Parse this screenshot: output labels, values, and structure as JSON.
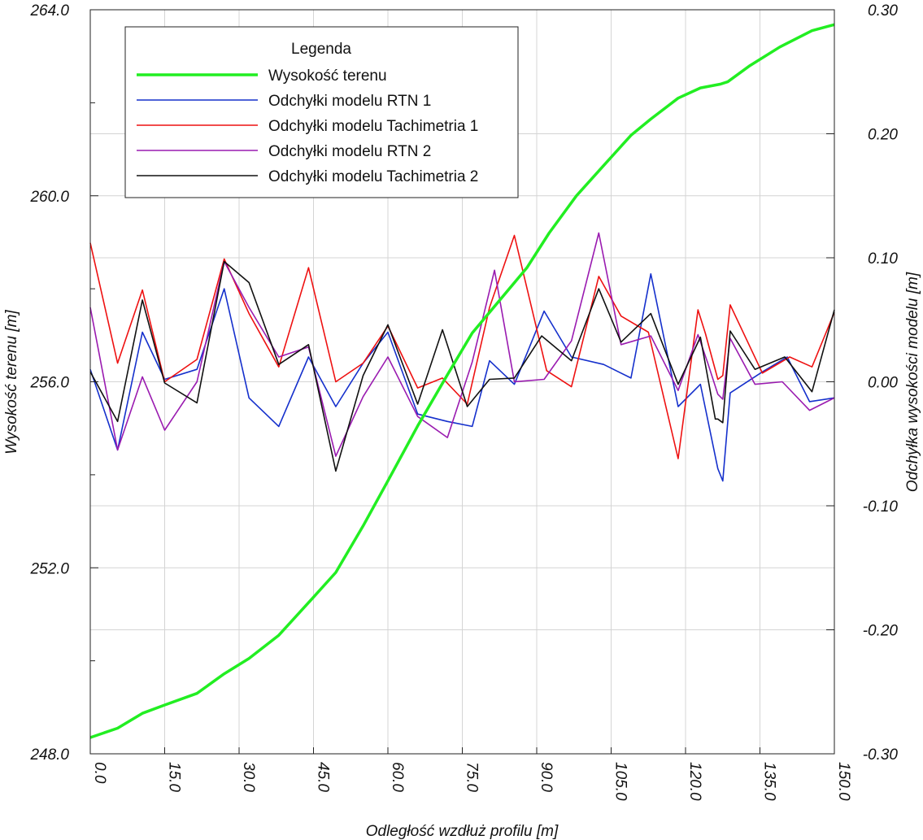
{
  "chart_data": {
    "type": "line",
    "xlabel": "Odległość wzdłuż profilu [m]",
    "ylabel_left": "Wysokość terenu  [m]",
    "ylabel_right": "Odchyłka wysokości modelu [m]",
    "xlim": [
      0,
      150
    ],
    "ylim_left": [
      248,
      264
    ],
    "ylim_right": [
      -0.3,
      0.3
    ],
    "x_ticks": [
      "0.0",
      "15.0",
      "30.0",
      "45.0",
      "60.0",
      "75.0",
      "90.0",
      "105.0",
      "120.0",
      "135.0",
      "150.0"
    ],
    "y_left_ticks": [
      "248.0",
      "252.0",
      "256.0",
      "260.0",
      "264.0"
    ],
    "y_right_ticks": [
      "-0.30",
      "-0.20",
      "-0.10",
      "0.00",
      "0.10",
      "0.20",
      "0.30"
    ],
    "grid": true,
    "legend_position": "top-left",
    "legend": {
      "title": "Legenda",
      "entries": [
        "Wysokość terenu",
        "Odchyłki modelu RTN 1",
        "Odchyłki modelu Tachimetria 1",
        "Odchyłki modelu RTN 2",
        "Odchyłki modelu Tachimetria 2"
      ]
    },
    "series": [
      {
        "name": "Wysokość terenu",
        "axis": "left",
        "color": "#22ee22",
        "x": [
          0,
          5.5,
          10.5,
          15,
          21.5,
          27,
          32,
          38,
          44,
          49.5,
          55,
          60,
          66,
          72,
          77,
          82.5,
          88,
          92.5,
          98,
          103.5,
          109,
          113,
          118.5,
          123,
          127,
          128.5,
          133,
          139,
          145.5,
          150
        ],
        "y": [
          248.35,
          248.55,
          248.87,
          249.05,
          249.3,
          249.72,
          250.05,
          250.55,
          251.25,
          251.9,
          252.9,
          253.87,
          255.05,
          256.15,
          257.05,
          257.75,
          258.45,
          259.2,
          260.0,
          260.65,
          261.3,
          261.65,
          262.1,
          262.32,
          262.4,
          262.45,
          262.8,
          263.2,
          263.55,
          263.68
        ]
      },
      {
        "name": "Odchyłki modelu RTN 1",
        "axis": "right",
        "color": "#1530cc",
        "x": [
          0,
          5.5,
          10.5,
          15,
          21.5,
          27,
          32,
          38,
          44,
          49.5,
          55,
          60,
          66,
          72,
          77,
          80.5,
          85.5,
          91.5,
          97,
          103.5,
          109,
          113,
          118.5,
          123,
          126.5,
          127.5,
          129,
          135.5,
          140.5,
          145,
          150
        ],
        "y": [
          0.01,
          -0.055,
          0.04,
          0.002,
          0.01,
          0.075,
          -0.013,
          -0.036,
          0.02,
          -0.02,
          0.015,
          0.04,
          -0.026,
          -0.032,
          -0.036,
          0.017,
          -0.002,
          0.057,
          0.02,
          0.014,
          0.003,
          0.087,
          -0.02,
          -0.002,
          -0.07,
          -0.08,
          -0.009,
          0.008,
          0.02,
          -0.016,
          -0.013
        ]
      },
      {
        "name": "Odchyłki modelu Tachimetria 1",
        "axis": "right",
        "color": "#ee1111",
        "x": [
          0,
          5.5,
          10.5,
          15,
          21.5,
          27,
          32,
          38,
          44,
          49.5,
          55,
          60,
          66,
          71,
          76,
          80.5,
          85.5,
          92,
          97,
          102.5,
          107,
          112.5,
          118.5,
          122.5,
          124,
          126.5,
          127.5,
          129,
          135.5,
          141,
          145.5,
          150
        ],
        "y": [
          0.112,
          0.015,
          0.074,
          0.0,
          0.018,
          0.099,
          0.055,
          0.012,
          0.092,
          0.0,
          0.015,
          0.045,
          -0.005,
          0.003,
          -0.018,
          0.06,
          0.118,
          0.009,
          -0.004,
          0.085,
          0.053,
          0.04,
          -0.062,
          0.058,
          0.039,
          0.002,
          0.005,
          0.062,
          0.007,
          0.02,
          0.012,
          0.056
        ]
      },
      {
        "name": "Odchyłki modelu RTN 2",
        "axis": "right",
        "color": "#9a1bb0",
        "x": [
          0,
          5.5,
          10.5,
          15,
          21.5,
          27,
          32,
          38,
          44,
          49.5,
          55,
          60,
          66,
          72,
          77,
          81.5,
          85.5,
          91.5,
          97,
          102.5,
          107,
          113,
          118.5,
          122.5,
          124.5,
          126.5,
          127.5,
          129,
          134,
          139.5,
          145,
          150
        ],
        "y": [
          0.06,
          -0.055,
          0.004,
          -0.039,
          0.0,
          0.097,
          0.06,
          0.02,
          0.028,
          -0.06,
          -0.012,
          0.02,
          -0.028,
          -0.045,
          0.016,
          0.09,
          0.0,
          0.002,
          0.033,
          0.12,
          0.03,
          0.037,
          -0.007,
          0.038,
          0.015,
          -0.01,
          -0.014,
          0.035,
          -0.002,
          0.0,
          -0.023,
          -0.013
        ]
      },
      {
        "name": "Odchyłki modelu Tachimetria 2",
        "axis": "right",
        "color": "#111111",
        "x": [
          0,
          5.5,
          10.5,
          15,
          21.5,
          27,
          32,
          38,
          44,
          49.5,
          55,
          60,
          66,
          71,
          76,
          80.5,
          85.5,
          91,
          97,
          102.5,
          107,
          113,
          118.5,
          123,
          126,
          126.5,
          127.5,
          129,
          134,
          140,
          145.5,
          150
        ],
        "y": [
          0.008,
          -0.032,
          0.066,
          -0.001,
          -0.017,
          0.097,
          0.08,
          0.014,
          0.03,
          -0.072,
          0.005,
          0.046,
          -0.018,
          0.042,
          -0.02,
          0.002,
          0.003,
          0.037,
          0.017,
          0.075,
          0.032,
          0.055,
          -0.002,
          0.036,
          -0.03,
          -0.03,
          -0.033,
          0.041,
          0.01,
          0.02,
          -0.008,
          0.058
        ]
      }
    ]
  }
}
